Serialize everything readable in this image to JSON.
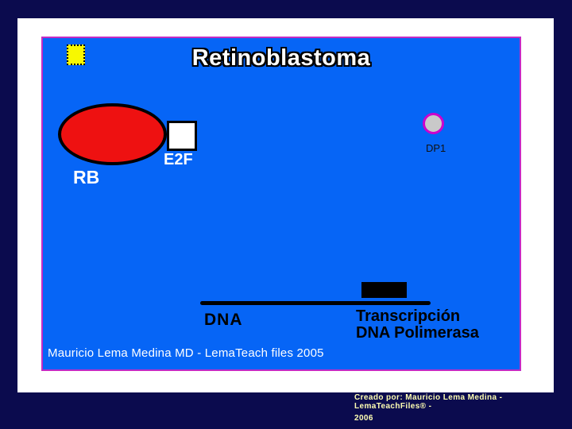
{
  "slide": {
    "title": "Retinoblastoma",
    "footer": "Mauricio Lema Medina MD - LemaTeach files 2005",
    "labels": {
      "rb": "RB",
      "e2f": "E2F",
      "dp1": "DP1",
      "dna": "DNA",
      "transcription_line1": "Transcripción",
      "transcription_line2": "DNA Polimerasa"
    },
    "shapes": {
      "yellow_square": "bullet-marker",
      "rb_ellipse": "RB protein",
      "e2f_box": "E2F protein",
      "dp1_circle": "DP1 protein",
      "poly_rect": "DNA polymerase block",
      "dna_line": "DNA strand"
    }
  },
  "credit": {
    "line1": "Creado por: Mauricio Lema Medina -  LemaTeachFiles® -",
    "line2": "2006"
  },
  "colors": {
    "background_navy": "#0b0b4e",
    "slide_white": "#ffffff",
    "panel_blue": "#0665f6",
    "panel_border_magenta": "#c42ac4",
    "ellipse_red": "#ee1111",
    "square_yellow": "#f8f800",
    "dp1_fill_gray": "#c9c9c9",
    "dp1_border_magenta": "#cc00cc",
    "credit_text_yellow": "#ffffb3"
  }
}
